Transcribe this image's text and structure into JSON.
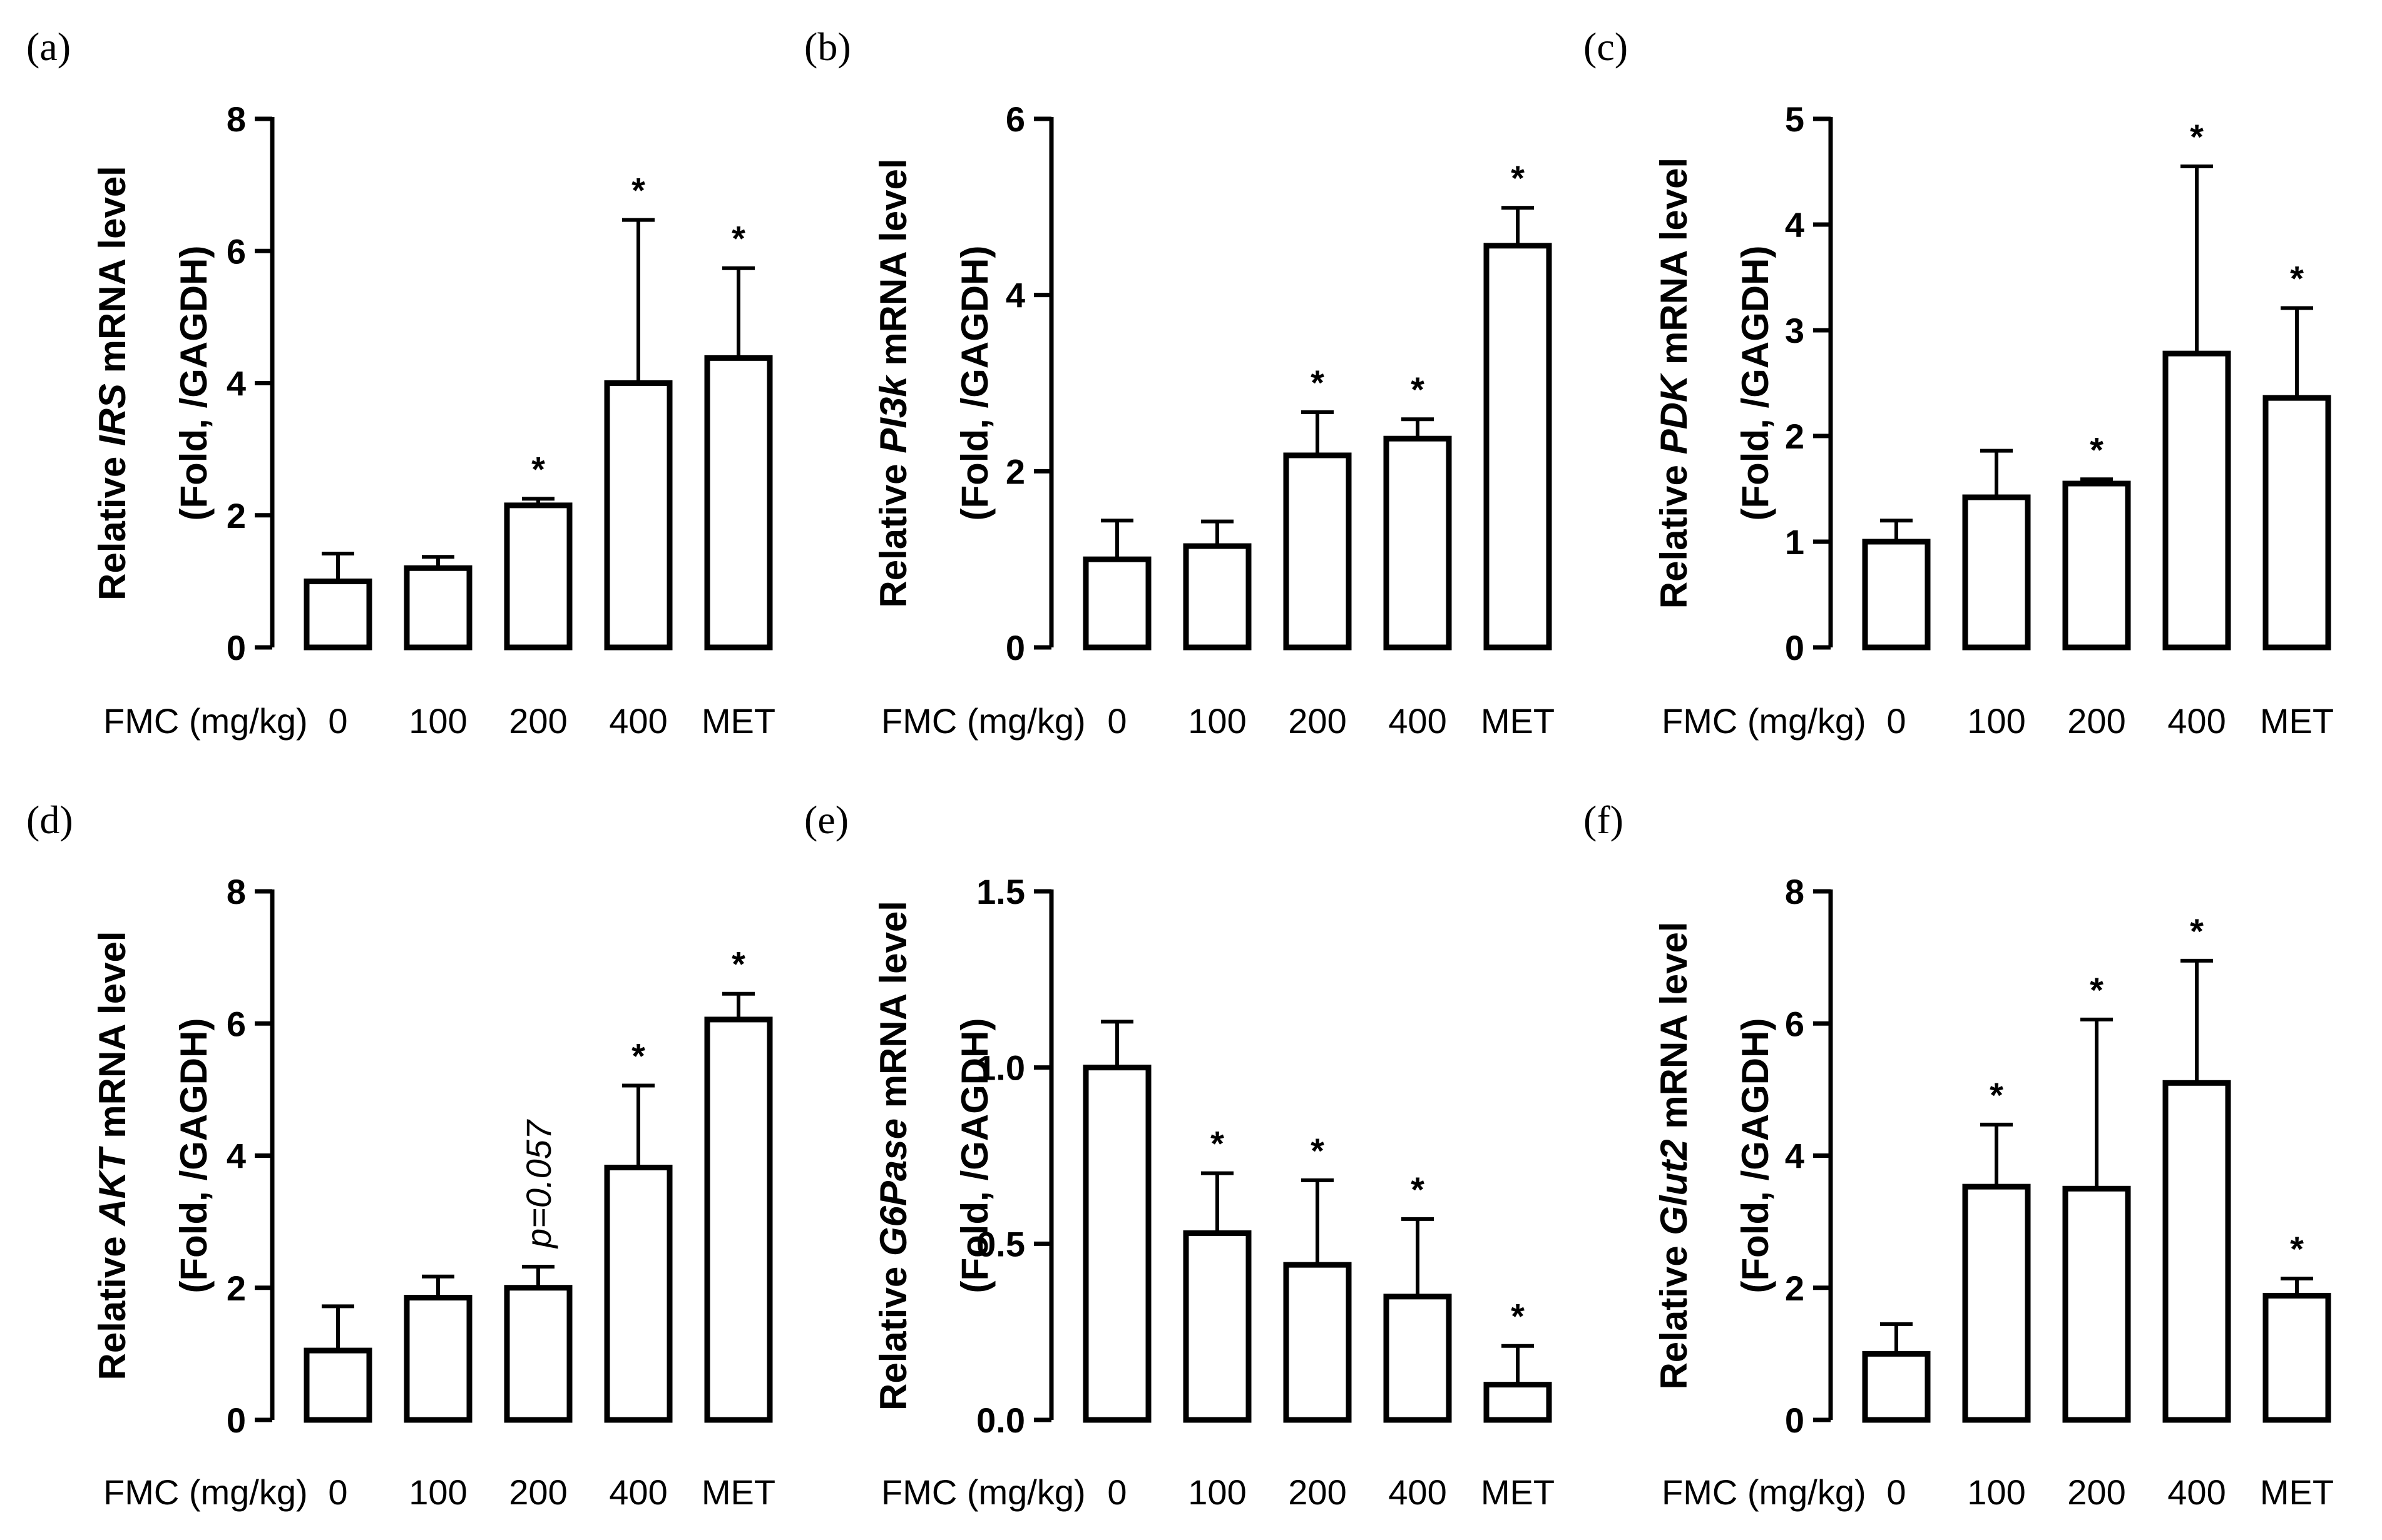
{
  "chart_data": [
    {
      "panel": "(a)",
      "type": "bar",
      "categories": [
        "0",
        "100",
        "200",
        "400",
        "MET"
      ],
      "values": [
        1.0,
        1.2,
        2.15,
        4.0,
        4.38
      ],
      "errors": [
        0.42,
        0.17,
        0.1,
        2.47,
        1.36
      ],
      "significance": [
        "",
        "",
        "*",
        "*",
        "*"
      ],
      "ylabel_line1_pre": "Relative ",
      "ylabel_line1_gene": "IRS",
      "ylabel_line1_post": " mRNA level",
      "ylabel_line2": "(Fold, /GAGDH)",
      "xlabel": "FMC (mg/kg)",
      "ylim": [
        0,
        8
      ],
      "yticks": [
        "0",
        "2",
        "4",
        "6",
        "8"
      ]
    },
    {
      "panel": "(b)",
      "type": "bar",
      "categories": [
        "0",
        "100",
        "200",
        "400",
        "MET"
      ],
      "values": [
        1.0,
        1.15,
        2.18,
        2.37,
        4.56
      ],
      "errors": [
        0.44,
        0.28,
        0.49,
        0.22,
        0.43
      ],
      "significance": [
        "",
        "",
        "*",
        "*",
        "*"
      ],
      "ylabel_line1_pre": "Relative ",
      "ylabel_line1_gene": "PI3k",
      "ylabel_line1_post": " mRNA level",
      "ylabel_line2": "(Fold, /GAGDH)",
      "xlabel": "FMC (mg/kg)",
      "ylim": [
        0,
        6
      ],
      "yticks": [
        "0",
        "2",
        "4",
        "6"
      ]
    },
    {
      "panel": "(c)",
      "type": "bar",
      "categories": [
        "0",
        "100",
        "200",
        "400",
        "MET"
      ],
      "values": [
        1.0,
        1.42,
        1.55,
        2.78,
        2.36
      ],
      "errors": [
        0.2,
        0.44,
        0.04,
        1.77,
        0.85
      ],
      "significance": [
        "",
        "",
        "*",
        "*",
        "*"
      ],
      "ylabel_line1_pre": "Relative ",
      "ylabel_line1_gene": "PDK",
      "ylabel_line1_post": " mRNA level",
      "ylabel_line2": "(Fold, /GAGDH)",
      "xlabel": "FMC (mg/kg)",
      "ylim": [
        0,
        5
      ],
      "yticks": [
        "0",
        "1",
        "2",
        "3",
        "4",
        "5"
      ]
    },
    {
      "panel": "(d)",
      "type": "bar",
      "categories": [
        "0",
        "100",
        "200",
        "400",
        "MET"
      ],
      "values": [
        1.05,
        1.85,
        2.0,
        3.82,
        6.06
      ],
      "errors": [
        0.67,
        0.32,
        0.32,
        1.24,
        0.39
      ],
      "significance": [
        "",
        "",
        "",
        "*",
        "*"
      ],
      "annotation": "p=0.057",
      "ylabel_line1_pre": "Relative ",
      "ylabel_line1_gene": "AKT",
      "ylabel_line1_post": " mRNA level",
      "ylabel_line2": "(Fold, /GAGDH)",
      "xlabel": "FMC (mg/kg)",
      "ylim": [
        0,
        8
      ],
      "yticks": [
        "0",
        "2",
        "4",
        "6",
        "8"
      ]
    },
    {
      "panel": "(e)",
      "type": "bar",
      "categories": [
        "0",
        "100",
        "200",
        "400",
        "MET"
      ],
      "values": [
        1.0,
        0.53,
        0.44,
        0.35,
        0.1
      ],
      "errors": [
        0.13,
        0.17,
        0.24,
        0.22,
        0.11
      ],
      "significance": [
        "",
        "*",
        "*",
        "*",
        "*"
      ],
      "ylabel_line1_pre": "Relative ",
      "ylabel_line1_gene": "G6Pase",
      "ylabel_line1_post": " mRNA level",
      "ylabel_line2": "(Fold, /GAGDH)",
      "xlabel": "FMC (mg/kg)",
      "ylim": [
        0,
        1.5
      ],
      "yticks": [
        "0.0",
        "0.5",
        "1.0",
        "1.5"
      ]
    },
    {
      "panel": "(f)",
      "type": "bar",
      "categories": [
        "0",
        "100",
        "200",
        "400",
        "MET"
      ],
      "values": [
        1.0,
        3.53,
        3.5,
        5.1,
        1.88
      ],
      "errors": [
        0.45,
        0.94,
        2.56,
        1.85,
        0.26
      ],
      "significance": [
        "",
        "*",
        "*",
        "*",
        "*"
      ],
      "ylabel_line1_pre": "Relative ",
      "ylabel_line1_gene": "Glut2",
      "ylabel_line1_post": " mRNA level",
      "ylabel_line2": "(Fold, /GAGDH)",
      "xlabel": "FMC (mg/kg)",
      "ylim": [
        0,
        8
      ],
      "yticks": [
        "0",
        "2",
        "4",
        "6",
        "8"
      ]
    }
  ]
}
